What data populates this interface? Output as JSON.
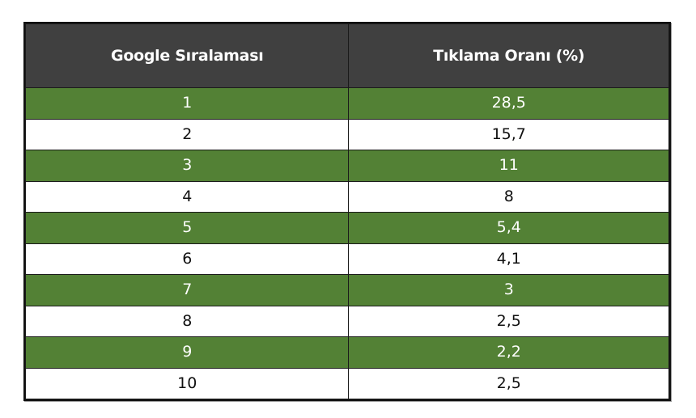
{
  "table": {
    "headers": [
      "Google Sıralaması",
      "Tıklama Oranı (%)"
    ],
    "rows": [
      {
        "rank": "1",
        "ctr": "28,5"
      },
      {
        "rank": "2",
        "ctr": "15,7"
      },
      {
        "rank": "3",
        "ctr": "11"
      },
      {
        "rank": "4",
        "ctr": "8"
      },
      {
        "rank": "5",
        "ctr": "5,4"
      },
      {
        "rank": "6",
        "ctr": "4,1"
      },
      {
        "rank": "7",
        "ctr": "3"
      },
      {
        "rank": "8",
        "ctr": "2,5"
      },
      {
        "rank": "9",
        "ctr": "2,2"
      },
      {
        "rank": "10",
        "ctr": "2,5"
      }
    ]
  },
  "colors": {
    "header_bg": "#404040",
    "header_text": "#ffffff",
    "stripe_green": "#538135",
    "stripe_white": "#ffffff",
    "border": "#1a1a1a"
  },
  "chart_data": {
    "type": "table",
    "title": "",
    "columns": [
      "Google Sıralaması",
      "Tıklama Oranı (%)"
    ],
    "categories": [
      "1",
      "2",
      "3",
      "4",
      "5",
      "6",
      "7",
      "8",
      "9",
      "10"
    ],
    "values": [
      28.5,
      15.7,
      11,
      8,
      5.4,
      4.1,
      3,
      2.5,
      2.2,
      2.5
    ]
  }
}
